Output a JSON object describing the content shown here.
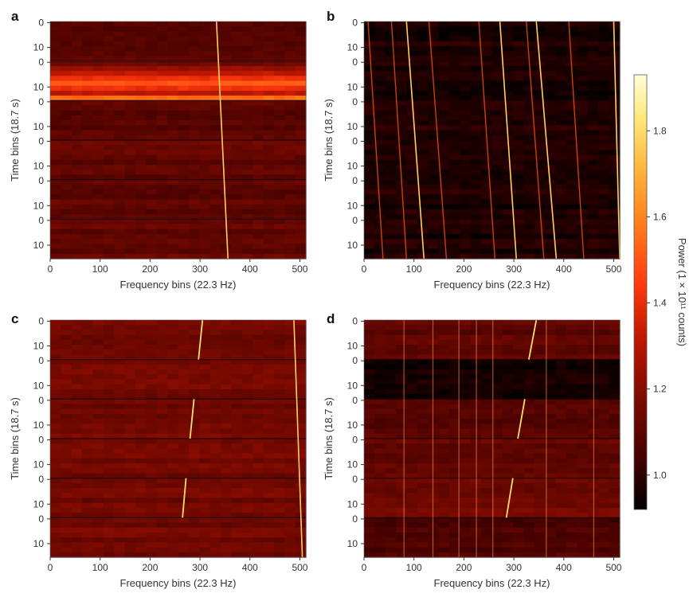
{
  "chart_data": [
    {
      "panel": "a",
      "type": "heatmap",
      "xlabel": "Frequency bins (22.3 Hz)",
      "ylabel": "Time bins (18.7 s)",
      "x_ticks": [
        0,
        100,
        200,
        300,
        400,
        500
      ],
      "xlim": [
        0,
        512
      ],
      "segments": 6,
      "bins_per_segment": 16,
      "y_tick_labels": [
        [
          "0",
          "10"
        ],
        [
          "0",
          "10"
        ],
        [
          "0",
          "10"
        ],
        [
          "0",
          "10"
        ],
        [
          "0",
          "10"
        ],
        [
          "0",
          "10"
        ]
      ],
      "signals": [
        {
          "f_start": 333,
          "f_end": 356,
          "style": "solid"
        }
      ],
      "background": {
        "segment_levels": [
          1.08,
          1.14,
          1.1,
          1.12,
          1.1,
          1.12
        ],
        "bright_band": {
          "segment": 1,
          "level": 1.5
        }
      }
    },
    {
      "panel": "b",
      "type": "heatmap",
      "xlabel": "Frequency bins (22.3 Hz)",
      "ylabel": "Time bins (18.7 s)",
      "x_ticks": [
        0,
        100,
        200,
        300,
        400,
        500
      ],
      "xlim": [
        0,
        512
      ],
      "segments": 6,
      "bins_per_segment": 16,
      "y_tick_labels": [
        [
          "0",
          "10"
        ],
        [
          "0",
          "10"
        ],
        [
          "0",
          "10"
        ],
        [
          "0",
          "10"
        ],
        [
          "0",
          "10"
        ],
        [
          "0",
          "10"
        ]
      ],
      "signals": [
        {
          "f_start": 8,
          "f_end": 38,
          "style": "faint"
        },
        {
          "f_start": 55,
          "f_end": 85,
          "style": "faint"
        },
        {
          "f_start": 85,
          "f_end": 120,
          "style": "solid"
        },
        {
          "f_start": 130,
          "f_end": 165,
          "style": "faint"
        },
        {
          "f_start": 230,
          "f_end": 262,
          "style": "faint"
        },
        {
          "f_start": 272,
          "f_end": 305,
          "style": "solid"
        },
        {
          "f_start": 325,
          "f_end": 360,
          "style": "faint"
        },
        {
          "f_start": 345,
          "f_end": 385,
          "style": "solid"
        },
        {
          "f_start": 410,
          "f_end": 440,
          "style": "faint"
        },
        {
          "f_start": 500,
          "f_end": 512,
          "style": "solid"
        }
      ],
      "background": {
        "segment_levels": [
          0.97,
          0.97,
          0.98,
          0.97,
          0.97,
          0.97
        ]
      }
    },
    {
      "panel": "c",
      "type": "heatmap",
      "xlabel": "Frequency bins (22.3 Hz)",
      "ylabel": "Time bins (18.7 s)",
      "x_ticks": [
        0,
        100,
        200,
        300,
        400,
        500
      ],
      "xlim": [
        0,
        512
      ],
      "segments": 6,
      "bins_per_segment": 16,
      "y_tick_labels": [
        [
          "0",
          "10"
        ],
        [
          "0",
          "10"
        ],
        [
          "0",
          "10"
        ],
        [
          "0",
          "10"
        ],
        [
          "0",
          "10"
        ],
        [
          "0",
          "10"
        ]
      ],
      "signals": [
        {
          "f_start": 488,
          "f_end": 505,
          "style": "solid",
          "span_all": true
        },
        {
          "segment": 0,
          "f_start": 305,
          "f_end": 297,
          "style": "short"
        },
        {
          "segment": 2,
          "f_start": 288,
          "f_end": 280,
          "style": "short"
        },
        {
          "segment": 4,
          "f_start": 272,
          "f_end": 265,
          "style": "short"
        }
      ],
      "background": {
        "segment_levels": [
          1.15,
          1.15,
          1.15,
          1.15,
          1.15,
          1.15
        ]
      }
    },
    {
      "panel": "d",
      "type": "heatmap",
      "xlabel": "Frequency bins (22.3 Hz)",
      "ylabel": "Time bins (18.7 s)",
      "x_ticks": [
        0,
        100,
        200,
        300,
        400,
        500
      ],
      "xlim": [
        0,
        512
      ],
      "segments": 6,
      "bins_per_segment": 16,
      "y_tick_labels": [
        [
          "0",
          "10"
        ],
        [
          "0",
          "10"
        ],
        [
          "0",
          "10"
        ],
        [
          "0",
          "10"
        ],
        [
          "0",
          "10"
        ],
        [
          "0",
          "10"
        ]
      ],
      "signals": [
        {
          "segment": 0,
          "f_start": 345,
          "f_end": 330,
          "style": "short"
        },
        {
          "segment": 2,
          "f_start": 322,
          "f_end": 308,
          "style": "short"
        },
        {
          "segment": 4,
          "f_start": 298,
          "f_end": 285,
          "style": "short"
        }
      ],
      "vertical_lines": [
        80,
        138,
        190,
        225,
        258,
        365,
        460
      ],
      "background": {
        "segment_levels": [
          1.1,
          0.96,
          1.08,
          1.12,
          1.14,
          1.06
        ]
      }
    }
  ],
  "colorbar": {
    "label": "Power (1 × 10¹¹ counts)",
    "min": 0.92,
    "max": 1.93,
    "ticks": [
      "1.0",
      "1.2",
      "1.4",
      "1.6",
      "1.8"
    ],
    "tick_values": [
      1.0,
      1.2,
      1.4,
      1.6,
      1.8
    ],
    "colormap": [
      "#000000",
      "#3a0000",
      "#7a0a00",
      "#c01800",
      "#ff3a10",
      "#ff7a1a",
      "#ffb43a",
      "#ffe87a",
      "#ffffd8"
    ]
  }
}
